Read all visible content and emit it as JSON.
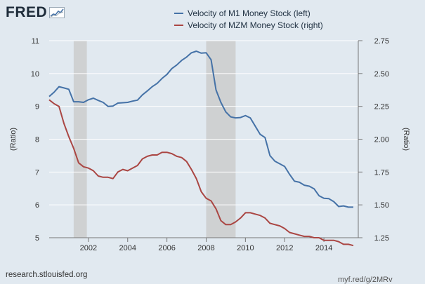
{
  "branding": {
    "logo_text": "FRED",
    "logo_icon": "trend-line-icon",
    "source_text": "research.stlouisfed.org",
    "short_url": "myf.red/g/2MRv"
  },
  "colors": {
    "background": "#e1e9f0",
    "series_left": "#4572a7",
    "series_right": "#aa4643",
    "recession": "#c8c8c8"
  },
  "chart_data": {
    "type": "line",
    "title": "",
    "xlabel": "",
    "ylabel_left": "(Ratio)",
    "ylabel_right": "(Ratio)",
    "xlim": [
      2000.0,
      2015.75
    ],
    "ylim_left": [
      5,
      11
    ],
    "ylim_right": [
      1.25,
      2.75
    ],
    "x_ticks": [
      2002,
      2004,
      2006,
      2008,
      2010,
      2012,
      2014
    ],
    "x_tick_labels": [
      "2002",
      "2004",
      "2006",
      "2008",
      "2010",
      "2012",
      "2014"
    ],
    "y_ticks_left": [
      5,
      6,
      7,
      8,
      9,
      10,
      11
    ],
    "y_tick_labels_left": [
      "5",
      "6",
      "7",
      "8",
      "9",
      "10",
      "11"
    ],
    "y_ticks_right": [
      1.25,
      1.5,
      1.75,
      2.0,
      2.25,
      2.5,
      2.75
    ],
    "y_tick_labels_right": [
      "1.25",
      "1.50",
      "1.75",
      "2.00",
      "2.25",
      "2.50",
      "2.75"
    ],
    "grid": true,
    "legend_position": "top-center",
    "recessions": [
      [
        2001.25,
        2001.92
      ],
      [
        2008.0,
        2009.5
      ]
    ],
    "series": [
      {
        "name": "Velocity of M1 Money Stock (left)",
        "axis": "left",
        "x": [
          2000.0,
          2000.25,
          2000.5,
          2000.75,
          2001.0,
          2001.25,
          2001.5,
          2001.75,
          2002.0,
          2002.25,
          2002.5,
          2002.75,
          2003.0,
          2003.25,
          2003.5,
          2003.75,
          2004.0,
          2004.25,
          2004.5,
          2004.75,
          2005.0,
          2005.25,
          2005.5,
          2005.75,
          2006.0,
          2006.25,
          2006.5,
          2006.75,
          2007.0,
          2007.25,
          2007.5,
          2007.75,
          2008.0,
          2008.25,
          2008.5,
          2008.75,
          2009.0,
          2009.25,
          2009.5,
          2009.75,
          2010.0,
          2010.25,
          2010.5,
          2010.75,
          2011.0,
          2011.25,
          2011.5,
          2011.75,
          2012.0,
          2012.25,
          2012.5,
          2012.75,
          2013.0,
          2013.25,
          2013.5,
          2013.75,
          2014.0,
          2014.25,
          2014.5,
          2014.75,
          2015.0,
          2015.25,
          2015.5
        ],
        "values": [
          9.3,
          9.43,
          9.6,
          9.56,
          9.52,
          9.14,
          9.14,
          9.12,
          9.2,
          9.25,
          9.18,
          9.12,
          9.0,
          9.01,
          9.1,
          9.11,
          9.12,
          9.16,
          9.19,
          9.35,
          9.47,
          9.6,
          9.7,
          9.85,
          9.97,
          10.15,
          10.26,
          10.4,
          10.5,
          10.63,
          10.68,
          10.62,
          10.63,
          10.42,
          9.5,
          9.12,
          8.83,
          8.68,
          8.65,
          8.66,
          8.72,
          8.65,
          8.4,
          8.15,
          8.05,
          7.5,
          7.33,
          7.25,
          7.17,
          6.93,
          6.72,
          6.69,
          6.6,
          6.57,
          6.49,
          6.28,
          6.2,
          6.19,
          6.1,
          5.95,
          5.97,
          5.93,
          5.93
        ]
      },
      {
        "name": "Velocity of MZM Money Stock (right)",
        "axis": "right",
        "x": [
          2000.0,
          2000.25,
          2000.5,
          2000.75,
          2001.0,
          2001.25,
          2001.5,
          2001.75,
          2002.0,
          2002.25,
          2002.5,
          2002.75,
          2003.0,
          2003.25,
          2003.5,
          2003.75,
          2004.0,
          2004.25,
          2004.5,
          2004.75,
          2005.0,
          2005.25,
          2005.5,
          2005.75,
          2006.0,
          2006.25,
          2006.5,
          2006.75,
          2007.0,
          2007.25,
          2007.5,
          2007.75,
          2008.0,
          2008.25,
          2008.5,
          2008.75,
          2009.0,
          2009.25,
          2009.5,
          2009.75,
          2010.0,
          2010.25,
          2010.5,
          2010.75,
          2011.0,
          2011.25,
          2011.5,
          2011.75,
          2012.0,
          2012.25,
          2012.5,
          2012.75,
          2013.0,
          2013.25,
          2013.5,
          2013.75,
          2014.0,
          2014.25,
          2014.5,
          2014.75,
          2015.0,
          2015.25,
          2015.5
        ],
        "values": [
          2.3,
          2.27,
          2.25,
          2.12,
          2.02,
          1.93,
          1.82,
          1.79,
          1.78,
          1.76,
          1.72,
          1.71,
          1.71,
          1.7,
          1.75,
          1.77,
          1.76,
          1.78,
          1.8,
          1.85,
          1.87,
          1.88,
          1.88,
          1.9,
          1.9,
          1.89,
          1.87,
          1.86,
          1.83,
          1.77,
          1.7,
          1.6,
          1.55,
          1.53,
          1.47,
          1.38,
          1.35,
          1.35,
          1.37,
          1.4,
          1.44,
          1.44,
          1.43,
          1.42,
          1.4,
          1.36,
          1.35,
          1.34,
          1.32,
          1.29,
          1.28,
          1.27,
          1.26,
          1.26,
          1.25,
          1.25,
          1.23,
          1.23,
          1.23,
          1.22,
          1.2,
          1.2,
          1.19
        ]
      }
    ]
  }
}
